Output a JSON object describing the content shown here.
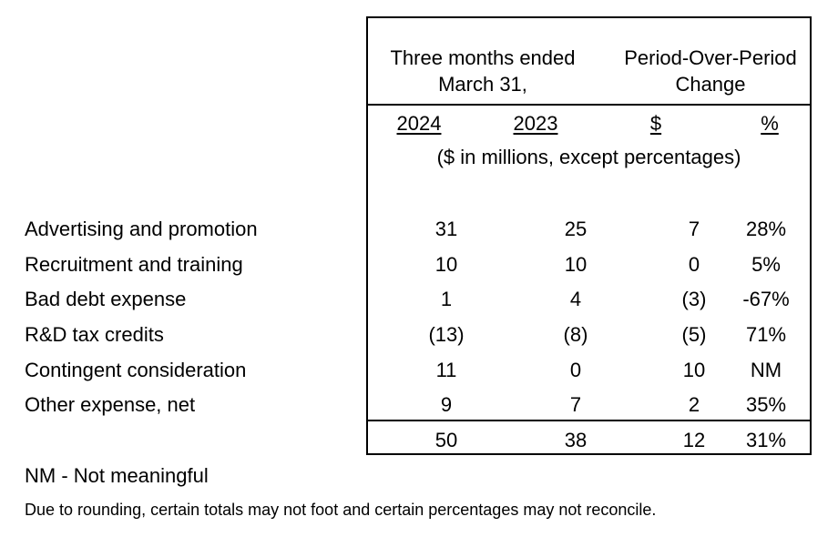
{
  "header": {
    "period_line1": "Three months ended",
    "period_line2": "March 31,",
    "change_line1": "Period-Over-Period",
    "change_line2": "Change",
    "col_2024": "2024",
    "col_2023": "2023",
    "col_dollar": "$",
    "col_pct": "%",
    "units": "($ in millions, except percentages)"
  },
  "rows": [
    {
      "label": "Advertising and promotion",
      "v2024": "31",
      "v2023": "25",
      "dollar": "7",
      "pct": "28%"
    },
    {
      "label": "Recruitment and training",
      "v2024": "10",
      "v2023": "10",
      "dollar": "0",
      "pct": "5%"
    },
    {
      "label": "Bad debt expense",
      "v2024": "1",
      "v2023": "4",
      "dollar": "(3)",
      "pct": "-67%"
    },
    {
      "label": "R&D tax credits",
      "v2024": "(13)",
      "v2023": "(8)",
      "dollar": "(5)",
      "pct": "71%"
    },
    {
      "label": "Contingent consideration",
      "v2024": "11",
      "v2023": "0",
      "dollar": "10",
      "pct": "NM"
    },
    {
      "label": "Other expense, net",
      "v2024": "9",
      "v2023": "7",
      "dollar": "2",
      "pct": "35%"
    }
  ],
  "total": {
    "v2024": "50",
    "v2023": "38",
    "dollar": "12",
    "pct": "31%"
  },
  "footnotes": {
    "nm": "NM - Not meaningful",
    "rounding": "Due to rounding, certain totals may not foot and certain percentages may not reconcile."
  }
}
